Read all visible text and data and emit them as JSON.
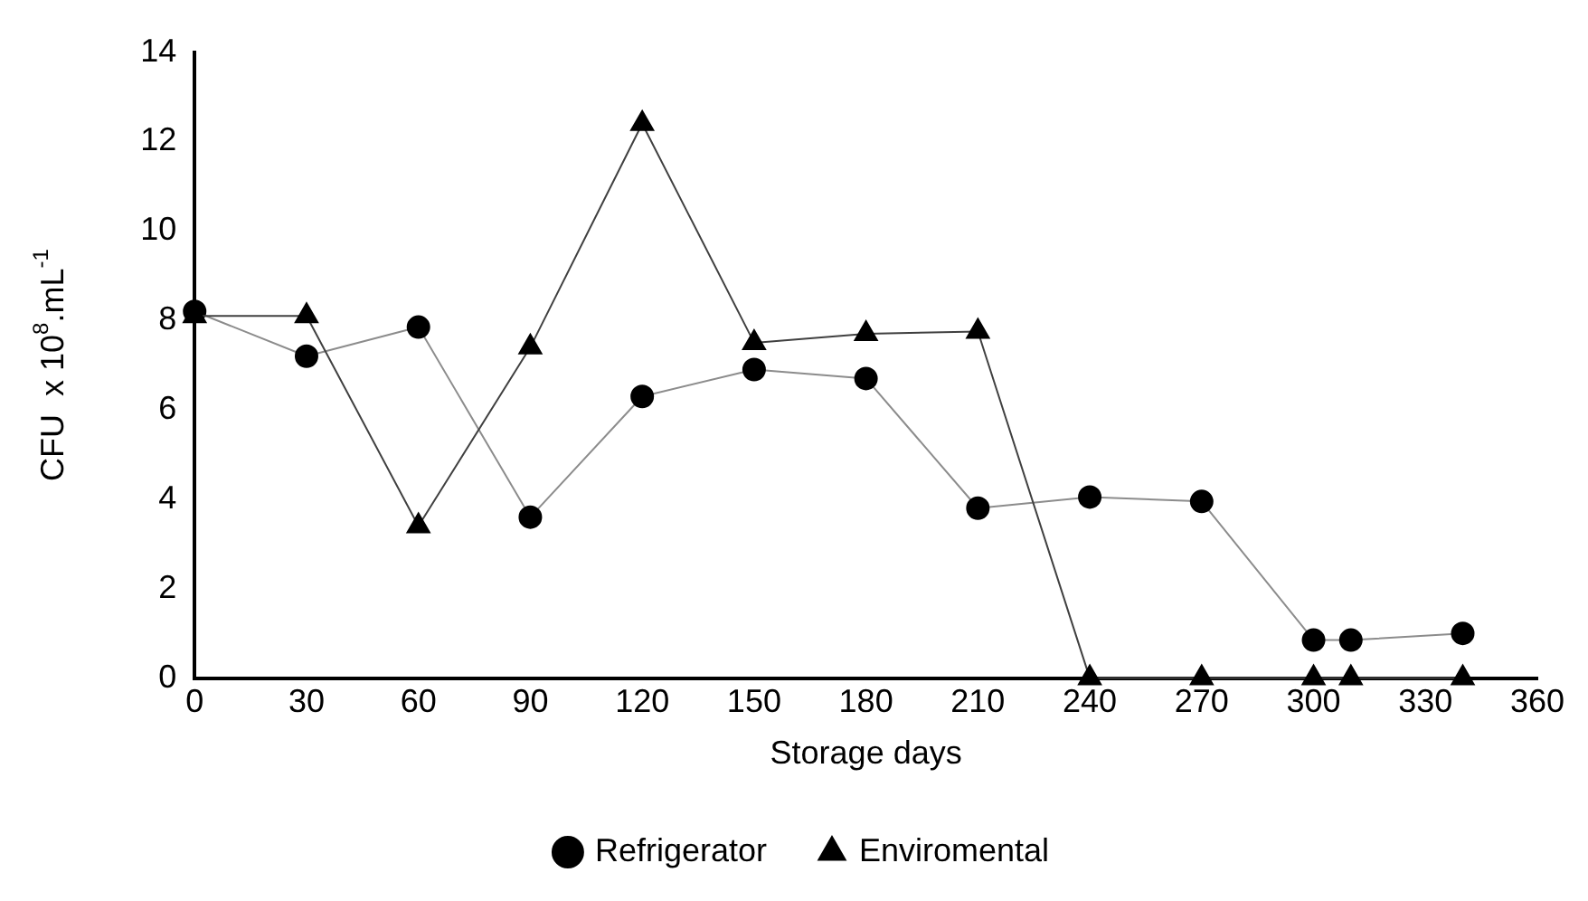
{
  "chart_data": {
    "type": "line",
    "xlabel": "Storage days",
    "ylabel": "CFU  x 10$^{8}$.mL$^{-1}$",
    "x": [
      0,
      30,
      60,
      90,
      120,
      150,
      180,
      210,
      240,
      270,
      300,
      310,
      340
    ],
    "series": [
      {
        "name": "Refrigerator",
        "color": "#000000",
        "marker": "circle",
        "values": [
          8.2,
          7.2,
          7.85,
          3.6,
          6.3,
          6.9,
          6.7,
          3.8,
          4.05,
          3.95,
          0.85,
          0.85,
          1.0
        ]
      },
      {
        "name": "Enviromental",
        "color": "#000000",
        "marker": "triangle",
        "values": [
          8.1,
          8.1,
          3.4,
          7.4,
          12.4,
          7.5,
          7.7,
          7.75,
          0,
          0,
          0,
          0,
          0
        ]
      }
    ],
    "xlim": [
      0,
      360
    ],
    "xticks": [
      0,
      30,
      60,
      90,
      120,
      150,
      180,
      210,
      240,
      270,
      300,
      330,
      360
    ],
    "ylim": [
      0,
      14
    ],
    "yticks": [
      0,
      2,
      4,
      6,
      8,
      10,
      12,
      14
    ],
    "grid": false,
    "legend": "bottom",
    "line_style": "solid"
  }
}
